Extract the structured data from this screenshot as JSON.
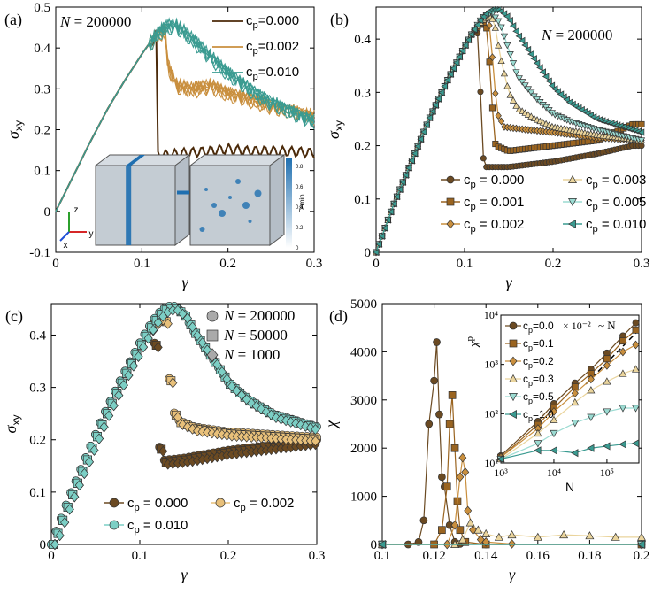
{
  "colors": {
    "c000": "#6b4a22",
    "c001": "#9a6420",
    "c002": "#c98f3e",
    "c003": "#ead49c",
    "c005": "#9bdbd2",
    "c010": "#3a9b91",
    "dark000": "#4b2a0a",
    "c020": "#d99a3e",
    "c030": "#f0d890",
    "c050": "#a8e6de",
    "c100": "#47a89c",
    "cube_blue": "#1f6fb0"
  },
  "chart_data": [
    {
      "panel": "a",
      "label": "(a)",
      "type": "line",
      "annotation": "N = 200000",
      "xlabel": "γ",
      "ylabel": "σ",
      "ylabel_sub": "xy",
      "xlim": [
        0,
        0.3
      ],
      "ylim": [
        -0.1,
        0.5
      ],
      "xticks": [
        0,
        0.1,
        0.2,
        0.3
      ],
      "xtick_labels": [
        "0",
        "0.1",
        "0.2",
        "0.3"
      ],
      "yticks": [
        -0.1,
        0,
        0.1,
        0.2,
        0.3,
        0.4,
        0.5
      ],
      "ytick_labels": [
        "-0.1",
        "0",
        "0.1",
        "0.2",
        "0.3",
        "0.4",
        "0.5"
      ],
      "legend": [
        "c_p=0.000",
        "c_p=0.002",
        "c_p=0.010"
      ],
      "series": [
        {
          "name": "c_p=0.000",
          "color": "#4b2a0a",
          "x": [
            0,
            0.02,
            0.04,
            0.06,
            0.08,
            0.1,
            0.11,
            0.118,
            0.1185,
            0.13,
            0.15,
            0.18,
            0.2,
            0.22,
            0.25,
            0.28,
            0.3
          ],
          "y": [
            0,
            0.085,
            0.17,
            0.25,
            0.32,
            0.385,
            0.415,
            0.44,
            0.14,
            0.14,
            0.145,
            0.15,
            0.155,
            0.15,
            0.15,
            0.148,
            0.145
          ]
        },
        {
          "name": "c_p=0.002",
          "color": "#c98f3e",
          "x": [
            0,
            0.02,
            0.04,
            0.06,
            0.08,
            0.1,
            0.11,
            0.12,
            0.127,
            0.13,
            0.14,
            0.16,
            0.18,
            0.2,
            0.22,
            0.25,
            0.28,
            0.3
          ],
          "y": [
            0,
            0.085,
            0.17,
            0.25,
            0.32,
            0.385,
            0.415,
            0.438,
            0.445,
            0.36,
            0.31,
            0.3,
            0.31,
            0.29,
            0.28,
            0.26,
            0.245,
            0.235
          ]
        },
        {
          "name": "c_p=0.010",
          "color": "#3a9b91",
          "x": [
            0,
            0.02,
            0.04,
            0.06,
            0.08,
            0.1,
            0.11,
            0.12,
            0.13,
            0.14,
            0.15,
            0.16,
            0.18,
            0.2,
            0.22,
            0.24,
            0.26,
            0.28,
            0.3
          ],
          "y": [
            0,
            0.085,
            0.17,
            0.25,
            0.32,
            0.385,
            0.415,
            0.44,
            0.455,
            0.455,
            0.44,
            0.42,
            0.38,
            0.34,
            0.31,
            0.28,
            0.26,
            0.24,
            0.225
          ]
        }
      ],
      "inset": {
        "axis_labels": [
          "x",
          "y",
          "z"
        ],
        "colorbar_ticks": [
          "0",
          "0.2",
          "0.4",
          "0.6",
          "0.8"
        ],
        "colorbar_label": "D²min"
      }
    },
    {
      "panel": "b",
      "label": "(b)",
      "type": "line",
      "annotation": "N = 200000",
      "xlabel": "γ",
      "ylabel": "σ",
      "ylabel_sub": "xy",
      "xlim": [
        0,
        0.3
      ],
      "ylim": [
        0,
        0.46
      ],
      "xticks": [
        0,
        0.1,
        0.2,
        0.3
      ],
      "xtick_labels": [
        "0",
        "0.1",
        "0.2",
        "0.3"
      ],
      "yticks": [
        0,
        0.1,
        0.2,
        0.3,
        0.4
      ],
      "ytick_labels": [
        "0",
        "0.1",
        "0.2",
        "0.3",
        "0.4"
      ],
      "legend": [
        "c_p = 0.000",
        "c_p = 0.001",
        "c_p = 0.002",
        "c_p = 0.003",
        "c_p = 0.005",
        "c_p = 0.010"
      ],
      "series": [
        {
          "name": "c_p = 0.000",
          "color": "#6b4a22",
          "marker": "circle",
          "x": [
            0,
            0.02,
            0.04,
            0.06,
            0.08,
            0.1,
            0.11,
            0.114,
            0.116,
            0.118,
            0.12,
            0.122,
            0.15,
            0.2,
            0.25,
            0.29,
            0.3
          ],
          "y": [
            0,
            0.09,
            0.17,
            0.25,
            0.32,
            0.385,
            0.415,
            0.42,
            0.39,
            0.3,
            0.21,
            0.16,
            0.16,
            0.17,
            0.185,
            0.2,
            0.2
          ]
        },
        {
          "name": "c_p = 0.001",
          "color": "#9a6420",
          "marker": "square",
          "x": [
            0,
            0.02,
            0.04,
            0.06,
            0.08,
            0.1,
            0.11,
            0.12,
            0.124,
            0.127,
            0.13,
            0.135,
            0.15,
            0.2,
            0.25,
            0.29,
            0.3
          ],
          "y": [
            0,
            0.09,
            0.17,
            0.25,
            0.32,
            0.385,
            0.415,
            0.43,
            0.43,
            0.39,
            0.3,
            0.2,
            0.19,
            0.2,
            0.21,
            0.24,
            0.24
          ]
        },
        {
          "name": "c_p = 0.002",
          "color": "#c98f3e",
          "marker": "diamond",
          "x": [
            0,
            0.02,
            0.04,
            0.06,
            0.08,
            0.1,
            0.11,
            0.12,
            0.127,
            0.13,
            0.133,
            0.137,
            0.145,
            0.17,
            0.2,
            0.25,
            0.3
          ],
          "y": [
            0,
            0.09,
            0.17,
            0.25,
            0.32,
            0.385,
            0.415,
            0.435,
            0.44,
            0.4,
            0.33,
            0.26,
            0.235,
            0.23,
            0.225,
            0.215,
            0.21
          ]
        },
        {
          "name": "c_p = 0.003",
          "color": "#ead49c",
          "marker": "triangle-up",
          "x": [
            0,
            0.02,
            0.04,
            0.06,
            0.08,
            0.1,
            0.11,
            0.12,
            0.13,
            0.135,
            0.14,
            0.15,
            0.16,
            0.18,
            0.2,
            0.25,
            0.3
          ],
          "y": [
            0,
            0.09,
            0.17,
            0.25,
            0.32,
            0.385,
            0.415,
            0.435,
            0.445,
            0.42,
            0.37,
            0.3,
            0.27,
            0.25,
            0.235,
            0.22,
            0.21
          ]
        },
        {
          "name": "c_p = 0.005",
          "color": "#9bdbd2",
          "marker": "triangle-down",
          "x": [
            0,
            0.02,
            0.04,
            0.06,
            0.08,
            0.1,
            0.11,
            0.12,
            0.13,
            0.14,
            0.15,
            0.16,
            0.18,
            0.2,
            0.22,
            0.25,
            0.3
          ],
          "y": [
            0,
            0.09,
            0.17,
            0.25,
            0.32,
            0.385,
            0.415,
            0.44,
            0.45,
            0.43,
            0.38,
            0.33,
            0.29,
            0.26,
            0.245,
            0.23,
            0.21
          ]
        },
        {
          "name": "c_p = 0.010",
          "color": "#3a9b91",
          "marker": "triangle-left",
          "x": [
            0,
            0.02,
            0.04,
            0.06,
            0.08,
            0.1,
            0.11,
            0.12,
            0.13,
            0.14,
            0.15,
            0.16,
            0.18,
            0.2,
            0.22,
            0.25,
            0.3
          ],
          "y": [
            0,
            0.09,
            0.17,
            0.25,
            0.32,
            0.385,
            0.415,
            0.44,
            0.455,
            0.455,
            0.44,
            0.41,
            0.36,
            0.31,
            0.28,
            0.25,
            0.225
          ]
        }
      ]
    },
    {
      "panel": "c",
      "label": "(c)",
      "type": "line",
      "xlabel": "γ",
      "ylabel": "σ",
      "ylabel_sub": "xy",
      "xlim": [
        0,
        0.3
      ],
      "ylim": [
        0,
        0.46
      ],
      "xticks": [
        0,
        0.1,
        0.2,
        0.3
      ],
      "xtick_labels": [
        "0",
        "0.1",
        "0.2",
        "0.3"
      ],
      "yticks": [
        0,
        0.1,
        0.2,
        0.3,
        0.4
      ],
      "ytick_labels": [
        "0",
        "0.1",
        "0.2",
        "0.3",
        "0.4"
      ],
      "size_legend": [
        "N = 200000",
        "N = 50000",
        "N = 1000"
      ],
      "legend": [
        "c_p = 0.000",
        "c_p = 0.002",
        "c_p = 0.010"
      ],
      "series": [
        {
          "name": "c_p = 0.000",
          "color": "#6b4a22",
          "x": [
            0,
            0.02,
            0.04,
            0.06,
            0.08,
            0.1,
            0.11,
            0.114,
            0.117,
            0.12,
            0.123,
            0.15,
            0.2,
            0.25,
            0.3
          ],
          "y": [
            0,
            0.09,
            0.17,
            0.25,
            0.32,
            0.385,
            0.415,
            0.42,
            0.38,
            0.26,
            0.16,
            0.165,
            0.18,
            0.19,
            0.2
          ]
        },
        {
          "name": "c_p = 0.002",
          "color": "#e8c07a",
          "x": [
            0,
            0.02,
            0.04,
            0.06,
            0.08,
            0.1,
            0.11,
            0.12,
            0.127,
            0.13,
            0.134,
            0.14,
            0.16,
            0.2,
            0.25,
            0.3
          ],
          "y": [
            0,
            0.09,
            0.17,
            0.25,
            0.32,
            0.385,
            0.415,
            0.435,
            0.44,
            0.4,
            0.3,
            0.24,
            0.225,
            0.215,
            0.21,
            0.205
          ]
        },
        {
          "name": "c_p = 0.010",
          "color": "#7ccfc5",
          "x": [
            0,
            0.02,
            0.04,
            0.06,
            0.08,
            0.1,
            0.11,
            0.12,
            0.13,
            0.14,
            0.15,
            0.16,
            0.18,
            0.2,
            0.22,
            0.25,
            0.3
          ],
          "y": [
            0,
            0.09,
            0.17,
            0.25,
            0.32,
            0.385,
            0.415,
            0.44,
            0.455,
            0.455,
            0.44,
            0.41,
            0.36,
            0.31,
            0.28,
            0.25,
            0.225
          ]
        }
      ]
    },
    {
      "panel": "d",
      "label": "(d)",
      "type": "line",
      "xlabel": "γ",
      "ylabel": "χ",
      "xlim": [
        0.1,
        0.2
      ],
      "ylim": [
        0,
        5000
      ],
      "xticks": [
        0.1,
        0.12,
        0.14,
        0.16,
        0.18,
        0.2
      ],
      "xtick_labels": [
        "0.1",
        "0.12",
        "0.14",
        "0.16",
        "0.18",
        "0.2"
      ],
      "yticks": [
        0,
        1000,
        2000,
        3000,
        4000,
        5000
      ],
      "ytick_labels": [
        "0",
        "1000",
        "2000",
        "3000",
        "4000",
        "5000"
      ],
      "series": [
        {
          "name": "c_p = 0.000",
          "color": "#6b4a22",
          "x": [
            0.1,
            0.11,
            0.114,
            0.116,
            0.118,
            0.12,
            0.121,
            0.122,
            0.123,
            0.124,
            0.126,
            0.128,
            0.13,
            0.14,
            0.2
          ],
          "y": [
            0,
            0,
            50,
            500,
            2500,
            3400,
            4200,
            2700,
            1400,
            1200,
            400,
            50,
            10,
            0,
            0
          ]
        },
        {
          "name": "c_p = 0.001",
          "color": "#9a6420",
          "x": [
            0.1,
            0.12,
            0.123,
            0.125,
            0.126,
            0.127,
            0.128,
            0.129,
            0.13,
            0.132,
            0.14,
            0.2
          ],
          "y": [
            0,
            0,
            300,
            1200,
            2500,
            3100,
            2000,
            900,
            300,
            50,
            0,
            0
          ]
        },
        {
          "name": "c_p = 0.002",
          "color": "#c98f3e",
          "x": [
            0.1,
            0.125,
            0.128,
            0.13,
            0.131,
            0.132,
            0.133,
            0.135,
            0.138,
            0.14,
            0.15,
            0.2
          ],
          "y": [
            0,
            0,
            400,
            1400,
            1800,
            1500,
            700,
            300,
            100,
            50,
            10,
            0
          ]
        },
        {
          "name": "c_p = 0.003",
          "color": "#ead49c",
          "x": [
            0.1,
            0.128,
            0.131,
            0.134,
            0.137,
            0.14,
            0.145,
            0.15,
            0.16,
            0.17,
            0.18,
            0.19,
            0.2
          ],
          "y": [
            0,
            0,
            100,
            450,
            300,
            220,
            150,
            200,
            150,
            200,
            180,
            150,
            150
          ]
        },
        {
          "name": "c_p = 0.005",
          "color": "#9bdbd2",
          "x": [
            0.1,
            0.2
          ],
          "y": [
            0,
            0
          ]
        },
        {
          "name": "c_p = 0.010",
          "color": "#3a9b91",
          "x": [
            0.1,
            0.2
          ],
          "y": [
            0,
            0
          ]
        }
      ],
      "inset": {
        "xlabel": "N",
        "ylabel": "χ",
        "ylabel_sup": "p",
        "xscale": "log",
        "yscale": "log",
        "xlim": [
          1000,
          400000
        ],
        "ylim": [
          10,
          10000
        ],
        "xtick_labels": [
          "10³",
          "10⁴",
          "10⁵"
        ],
        "ytick_labels": [
          "10¹",
          "10²",
          "10³",
          "10⁴"
        ],
        "reference_line": "~ N",
        "legend_unit": "× 10⁻²",
        "legend": [
          "c_p=0.0",
          "c_p=0.1",
          "c_p=0.2",
          "c_p=0.3",
          "c_p=0.5",
          "c_p=1.0"
        ],
        "series": [
          {
            "name": "c_p=0.0",
            "color": "#6b4a22",
            "marker": "circle",
            "N": [
              1000,
              5000,
              10000,
              25000,
              50000,
              100000,
              200000,
              350000
            ],
            "chi": [
              14,
              70,
              160,
              420,
              800,
              1700,
              3800,
              7000
            ]
          },
          {
            "name": "c_p=0.1",
            "color": "#9a6420",
            "marker": "square",
            "N": [
              1000,
              5000,
              10000,
              25000,
              50000,
              100000,
              200000,
              350000
            ],
            "chi": [
              13,
              60,
              130,
              350,
              650,
              1300,
              3000,
              5000
            ]
          },
          {
            "name": "c_p=0.2",
            "color": "#c98f3e",
            "marker": "diamond",
            "N": [
              1000,
              5000,
              10000,
              25000,
              50000,
              100000,
              200000,
              350000
            ],
            "chi": [
              13,
              50,
              110,
              260,
              500,
              950,
              1800,
              2500
            ]
          },
          {
            "name": "c_p=0.3",
            "color": "#ead49c",
            "marker": "triangle-up",
            "N": [
              1000,
              5000,
              10000,
              25000,
              50000,
              100000,
              200000,
              350000
            ],
            "chi": [
              12,
              40,
              75,
              170,
              300,
              450,
              650,
              800
            ]
          },
          {
            "name": "c_p=0.5",
            "color": "#9bdbd2",
            "marker": "triangle-down",
            "N": [
              1000,
              5000,
              10000,
              25000,
              50000,
              100000,
              200000,
              350000
            ],
            "chi": [
              12,
              25,
              40,
              65,
              85,
              110,
              130,
              130
            ]
          },
          {
            "name": "c_p=1.0",
            "color": "#3a9b91",
            "marker": "triangle-left",
            "N": [
              1000,
              5000,
              10000,
              25000,
              50000,
              100000,
              200000,
              350000
            ],
            "chi": [
              12,
              18,
              18,
              16,
              20,
              22,
              24,
              25
            ]
          }
        ]
      }
    }
  ]
}
